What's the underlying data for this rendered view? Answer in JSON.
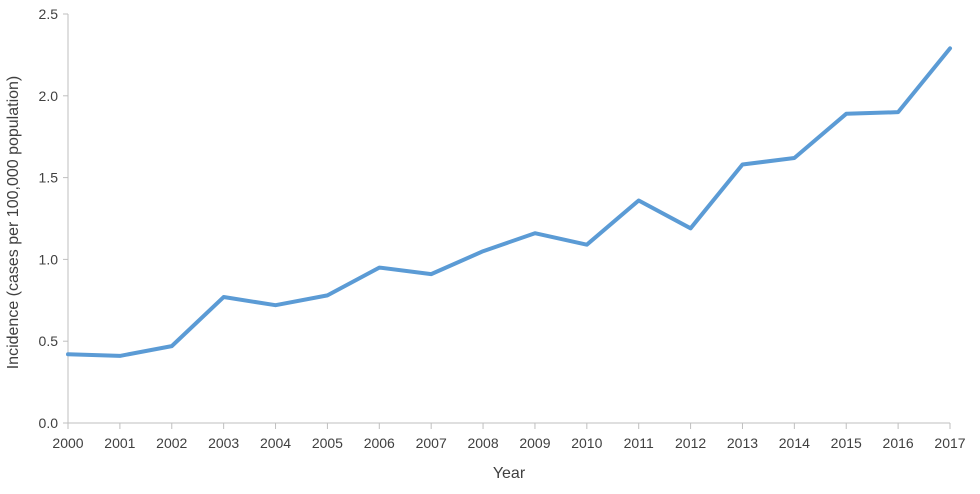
{
  "chart_data": {
    "type": "line",
    "title": "",
    "xlabel": "Year",
    "ylabel": "Incidence (cases per 100,000 population)",
    "x": [
      "2000",
      "2001",
      "2002",
      "2003",
      "2004",
      "2005",
      "2006",
      "2007",
      "2008",
      "2009",
      "2010",
      "2011",
      "2012",
      "2013",
      "2014",
      "2015",
      "2016",
      "2017"
    ],
    "series": [
      {
        "values": [
          0.42,
          0.41,
          0.47,
          0.77,
          0.72,
          0.78,
          0.95,
          0.91,
          1.05,
          1.16,
          1.09,
          1.36,
          1.19,
          1.58,
          1.62,
          1.89,
          1.9,
          2.29
        ],
        "color": "#5b9bd5"
      }
    ],
    "ylim": [
      0,
      2.5
    ],
    "yticks": [
      "0.0",
      "0.5",
      "1.0",
      "1.5",
      "2.0",
      "2.5"
    ],
    "grid": false,
    "legend": "none"
  },
  "colors": {
    "axis": "#bfbfbf",
    "text": "#404040",
    "line": "#5b9bd5"
  }
}
